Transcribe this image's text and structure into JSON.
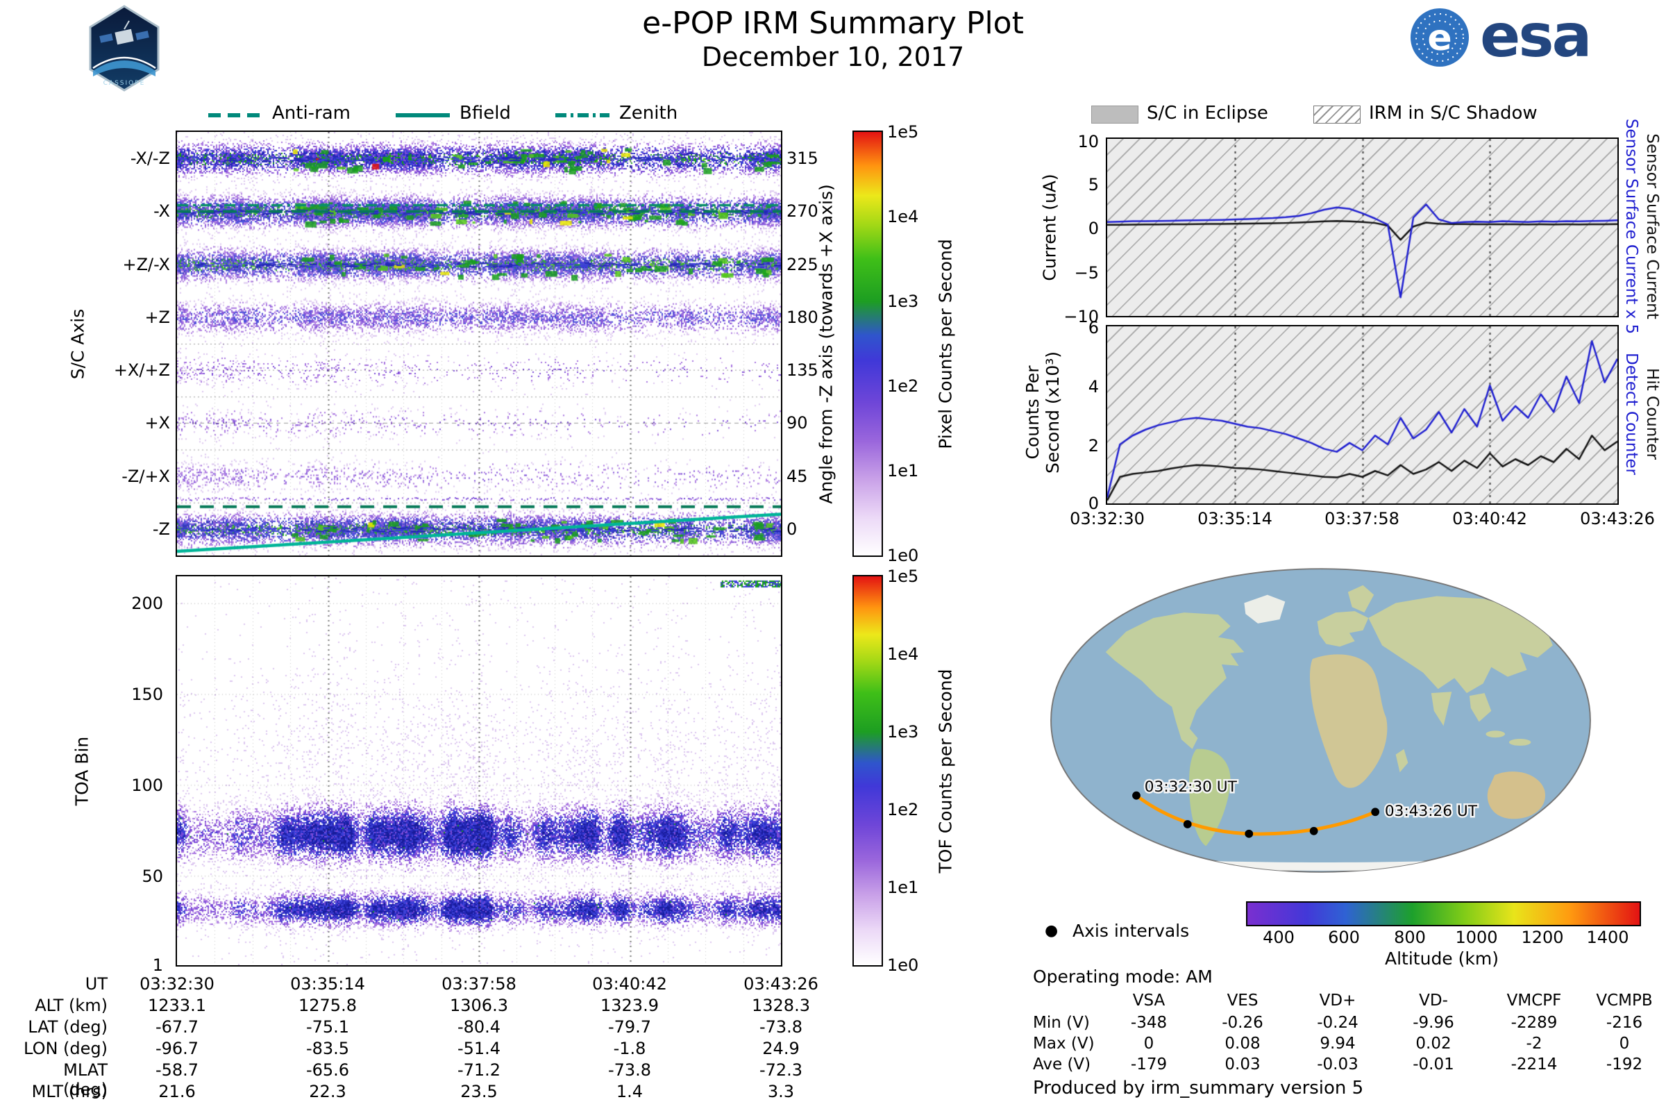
{
  "header": {
    "title": "e-POP IRM Summary Plot",
    "subtitle": "December 10, 2017",
    "esa_wordmark": "esa",
    "cassiope_text": "CASSIOPE"
  },
  "colors": {
    "series_blue": "#1f1fd0",
    "series_black": "#111111",
    "overlay_teal": "#00b598",
    "overlay_dark_teal": "#067a58",
    "eclipse_gray": "#bdbdbd",
    "orbit_orange": "#ff9a00"
  },
  "left_legend": {
    "color": "#00897b",
    "items": [
      {
        "label": "Anti-ram",
        "line_style": "dashed"
      },
      {
        "label": "Bfield",
        "line_style": "solid"
      },
      {
        "label": "Zenith",
        "line_style": "dashdot"
      }
    ]
  },
  "right_legend": {
    "items": [
      {
        "label": "S/C in Eclipse",
        "swatch": "gray"
      },
      {
        "label": "IRM in S/C Shadow",
        "swatch": "hatched"
      }
    ]
  },
  "chart_data": [
    {
      "type": "heatmap",
      "name": "sc_axis_pixel_spectrogram",
      "ylabel": "S/C Axis",
      "y_categories": [
        "-X/-Z",
        "-X",
        "+Z/-X",
        "+Z",
        "+X/+Z",
        "+X",
        "-Z/+X",
        "-Z"
      ],
      "right_axis_label": "Angle from -Z axis (towards +X axis)",
      "right_axis_ticks": [
        "315",
        "270",
        "225",
        "180",
        "135",
        "90",
        "45",
        "0"
      ],
      "x_tick_labels": [
        "03:32:30",
        "03:35:14",
        "03:37:58",
        "03:40:42",
        "03:43:26"
      ],
      "colorbar_label": "Pixel Counts per Second",
      "colorbar_ticks": [
        "1e5",
        "1e4",
        "1e3",
        "1e2",
        "1e1",
        "1e0"
      ],
      "colorbar_scale": "log",
      "overlays": [
        {
          "name": "Anti-ram",
          "style": "dashed"
        },
        {
          "name": "Bfield",
          "style": "solid"
        },
        {
          "name": "Zenith",
          "style": "dashdot"
        }
      ],
      "bands": [
        {
          "label": "-X/-Z",
          "density": 0.8,
          "style": "dense"
        },
        {
          "label": "-X",
          "density": 0.88,
          "style": "dense"
        },
        {
          "label": "+Z/-X",
          "density": 0.8,
          "style": "dense"
        },
        {
          "label": "+Z",
          "density": 0.5,
          "style": "medium"
        },
        {
          "label": "+X/+Z",
          "density": 0.16,
          "style": "sparse-left"
        },
        {
          "label": "+X",
          "density": 0.13,
          "style": "sparse-left"
        },
        {
          "label": "-Z/+X",
          "density": 0.22,
          "style": "sparse-left"
        },
        {
          "label": "-Z",
          "density": 0.78,
          "style": "dense-line"
        }
      ]
    },
    {
      "type": "heatmap",
      "name": "toa_tof_spectrogram",
      "ylabel": "TOA Bin",
      "ylim": [
        1,
        215
      ],
      "y_ticks": [
        "200",
        "150",
        "100",
        "50",
        "1"
      ],
      "y_tick_values": [
        200,
        150,
        100,
        50,
        1
      ],
      "x_tick_labels": [
        "03:32:30",
        "03:35:14",
        "03:37:58",
        "03:40:42",
        "03:43:26"
      ],
      "colorbar_label": "TOF Counts per Second",
      "colorbar_ticks": [
        "1e5",
        "1e4",
        "1e3",
        "1e2",
        "1e1",
        "1e0"
      ],
      "colorbar_scale": "log",
      "bands": [
        {
          "center": 73,
          "sigma": 13,
          "peak": 0.85
        },
        {
          "center": 32,
          "sigma": 8,
          "peak": 0.8
        },
        {
          "center": 112,
          "sigma": 40,
          "peak": 0.05
        }
      ],
      "background": 0.012
    },
    {
      "type": "line",
      "name": "sensor_surface_current",
      "ylabel": "Current (uA)",
      "ylim": [
        -10,
        10
      ],
      "y_ticks": [
        "10",
        "5",
        "0",
        "−5",
        "−10"
      ],
      "x_tick_labels": [
        "03:32:30",
        "03:35:14",
        "03:37:58",
        "03:40:42",
        "03:43:26"
      ],
      "background": "sc_eclipse_and_irm_shadow_hatched",
      "series": [
        {
          "name": "Sensor Surface Current x 5",
          "color": "#1f1fd0",
          "values": [
            0.6,
            0.65,
            0.7,
            0.7,
            0.72,
            0.75,
            0.78,
            0.8,
            0.82,
            0.85,
            0.9,
            0.95,
            1.0,
            1.05,
            1.15,
            1.3,
            1.6,
            2.0,
            2.25,
            2.1,
            1.6,
            1.0,
            0.3,
            -7.9,
            1.1,
            2.6,
            0.9,
            0.5,
            0.6,
            0.65,
            0.6,
            0.7,
            0.65,
            0.6,
            0.68,
            0.65,
            0.7,
            0.68,
            0.72,
            0.75,
            0.8
          ]
        },
        {
          "name": "Sensor Surface Current",
          "color": "#111111",
          "values": [
            0.3,
            0.3,
            0.32,
            0.33,
            0.34,
            0.35,
            0.36,
            0.38,
            0.39,
            0.4,
            0.42,
            0.44,
            0.46,
            0.48,
            0.5,
            0.55,
            0.6,
            0.68,
            0.72,
            0.68,
            0.6,
            0.5,
            0.2,
            -1.4,
            0.1,
            0.55,
            0.42,
            0.38,
            0.37,
            0.36,
            0.35,
            0.36,
            0.35,
            0.34,
            0.35,
            0.34,
            0.35,
            0.34,
            0.35,
            0.36,
            0.37
          ]
        }
      ]
    },
    {
      "type": "line",
      "name": "counters",
      "ylabel_line1": "Counts Per",
      "ylabel_line2": "Second (x10³)",
      "ylim": [
        0,
        6
      ],
      "y_ticks": [
        "6",
        "4",
        "2",
        "0"
      ],
      "x_tick_labels": [
        "03:32:30",
        "03:35:14",
        "03:37:58",
        "03:40:42",
        "03:43:26"
      ],
      "series": [
        {
          "name": "Detect Counter",
          "color": "#1f1fd0",
          "values": [
            0.2,
            2.0,
            2.3,
            2.5,
            2.65,
            2.75,
            2.85,
            2.9,
            2.85,
            2.8,
            2.7,
            2.6,
            2.55,
            2.45,
            2.35,
            2.2,
            2.05,
            1.85,
            1.75,
            2.05,
            1.8,
            2.3,
            2.0,
            2.9,
            2.2,
            2.5,
            3.1,
            2.4,
            3.2,
            2.6,
            4.0,
            2.8,
            3.3,
            2.9,
            3.7,
            3.1,
            4.3,
            3.4,
            5.5,
            4.1,
            4.9
          ]
        },
        {
          "name": "Hit Counter",
          "color": "#111111",
          "values": [
            0.1,
            0.9,
            1.0,
            1.05,
            1.1,
            1.18,
            1.25,
            1.3,
            1.28,
            1.25,
            1.2,
            1.18,
            1.15,
            1.1,
            1.05,
            1.0,
            0.95,
            0.9,
            0.88,
            1.0,
            0.9,
            1.1,
            0.95,
            1.3,
            1.0,
            1.15,
            1.4,
            1.1,
            1.45,
            1.2,
            1.7,
            1.25,
            1.5,
            1.3,
            1.6,
            1.4,
            1.85,
            1.5,
            2.3,
            1.8,
            2.1
          ]
        }
      ]
    }
  ],
  "ephemeris_table": {
    "rows": [
      {
        "label": "UT",
        "values": [
          "03:32:30",
          "03:35:14",
          "03:37:58",
          "03:40:42",
          "03:43:26"
        ]
      },
      {
        "label": "ALT (km)",
        "values": [
          "1233.1",
          "1275.8",
          "1306.3",
          "1323.9",
          "1328.3"
        ]
      },
      {
        "label": "LAT (deg)",
        "values": [
          "-67.7",
          "-75.1",
          "-80.4",
          "-79.7",
          "-73.8"
        ]
      },
      {
        "label": "LON (deg)",
        "values": [
          "-96.7",
          "-83.5",
          "-51.4",
          "-1.8",
          "24.9"
        ]
      },
      {
        "label": "MLAT (deg)",
        "values": [
          "-58.7",
          "-65.6",
          "-71.2",
          "-73.8",
          "-72.3"
        ]
      },
      {
        "label": "MLT (hrs)",
        "values": [
          "21.6",
          "22.3",
          "23.5",
          "1.4",
          "3.3"
        ]
      }
    ]
  },
  "voltage_table": {
    "columns": [
      "VSA",
      "VES",
      "VD+",
      "VD-",
      "VMCPF",
      "VCMPB"
    ],
    "rows": [
      {
        "label": "Min (V)",
        "values": [
          "-348",
          "-0.26",
          "-0.24",
          "-9.96",
          "-2289",
          "-216"
        ]
      },
      {
        "label": "Max (V)",
        "values": [
          "0",
          "0.08",
          "9.94",
          "0.02",
          "-2",
          "0"
        ]
      },
      {
        "label": "Ave (V)",
        "values": [
          "-179",
          "0.03",
          "-0.03",
          "-0.01",
          "-2214",
          "-192"
        ]
      }
    ]
  },
  "map": {
    "start_label": "03:32:30 UT",
    "end_label": "03:43:26 UT",
    "track_color": "#ff9a00"
  },
  "altitude_bar": {
    "label": "Altitude (km)",
    "ticks": [
      "400",
      "600",
      "800",
      "1000",
      "1200",
      "1400"
    ],
    "range": [
      300,
      1500
    ]
  },
  "footer": {
    "axis_intervals_label": "Axis intervals",
    "operating_mode": "Operating mode: AM",
    "produced_by": "Produced by irm_summary version 5"
  }
}
